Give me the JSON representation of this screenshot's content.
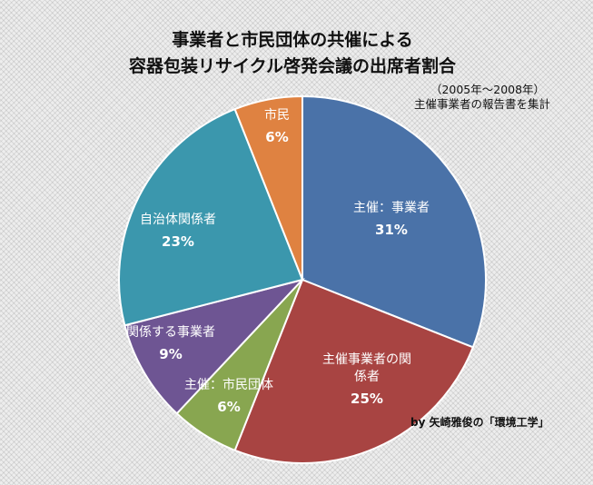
{
  "chart_data": {
    "type": "pie",
    "title": [
      "事業者と市民団体の共催による",
      "容器包装リサイクル啓発会議の出席者割合"
    ],
    "subtitle": [
      "（2005年～2008年）",
      "主催事業者の報告書を集計"
    ],
    "credit": "by 矢崎雅俊の「環境工学」",
    "start_angle_deg": 0,
    "direction": "clockwise",
    "slices": [
      {
        "label_lines": [
          "主催：事業者"
        ],
        "value": 31,
        "value_label": "31%",
        "color": "#4a72a8"
      },
      {
        "label_lines": [
          "主催事業者の関",
          "係者"
        ],
        "value": 25,
        "value_label": "25%",
        "color": "#a84442"
      },
      {
        "label_lines": [
          "主催：市民団体"
        ],
        "value": 6,
        "value_label": "6%",
        "color": "#88a650"
      },
      {
        "label_lines": [
          "関係する事業者"
        ],
        "value": 9,
        "value_label": "9%",
        "color": "#6e5593"
      },
      {
        "label_lines": [
          "自治体関係者"
        ],
        "value": 23,
        "value_label": "23%",
        "color": "#3b97ad"
      },
      {
        "label_lines": [
          "市民"
        ],
        "value": 6,
        "value_label": "6%",
        "color": "#df8241"
      }
    ]
  }
}
